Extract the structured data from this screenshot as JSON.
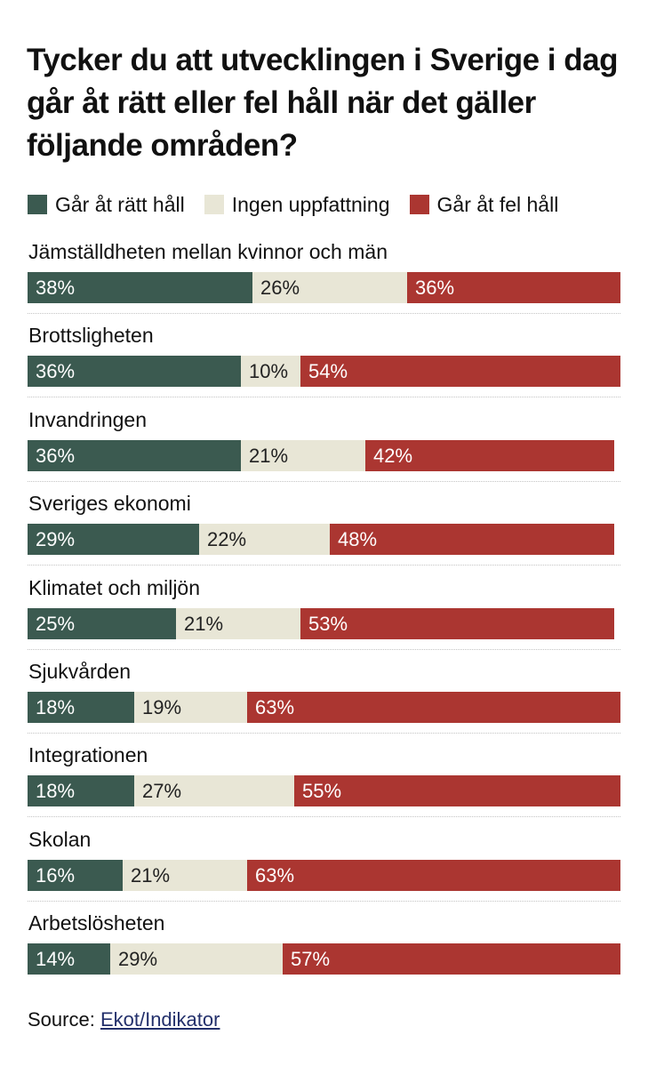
{
  "chart_data": {
    "type": "bar",
    "orientation": "horizontal",
    "stacked": true,
    "title": "Tycker du att utvecklingen i Sverige i dag går åt rätt eller fel håll när det gäller följande områden?",
    "categories": [
      "Jämställdheten mellan kvinnor och män",
      "Brottsligheten",
      "Invandringen",
      "Sveriges ekonomi",
      "Klimatet och miljön",
      "Sjukvården",
      "Integrationen",
      "Skolan",
      "Arbetslösheten"
    ],
    "series": [
      {
        "name": "Går åt rätt håll",
        "color": "#3b5a50",
        "text_color": "#ffffff",
        "values": [
          38,
          36,
          36,
          29,
          25,
          18,
          18,
          16,
          14
        ]
      },
      {
        "name": "Ingen uppfattning",
        "color": "#e8e6d6",
        "text_color": "#222222",
        "values": [
          26,
          10,
          21,
          22,
          21,
          19,
          27,
          21,
          29
        ]
      },
      {
        "name": "Går åt fel håll",
        "color": "#ab3631",
        "text_color": "#ffffff",
        "values": [
          36,
          54,
          42,
          48,
          53,
          63,
          55,
          63,
          57
        ]
      }
    ],
    "value_suffix": "%",
    "xlim": [
      0,
      100
    ],
    "legend_position": "top"
  },
  "source": {
    "prefix": "Source:",
    "link": "Ekot/Indikator"
  }
}
